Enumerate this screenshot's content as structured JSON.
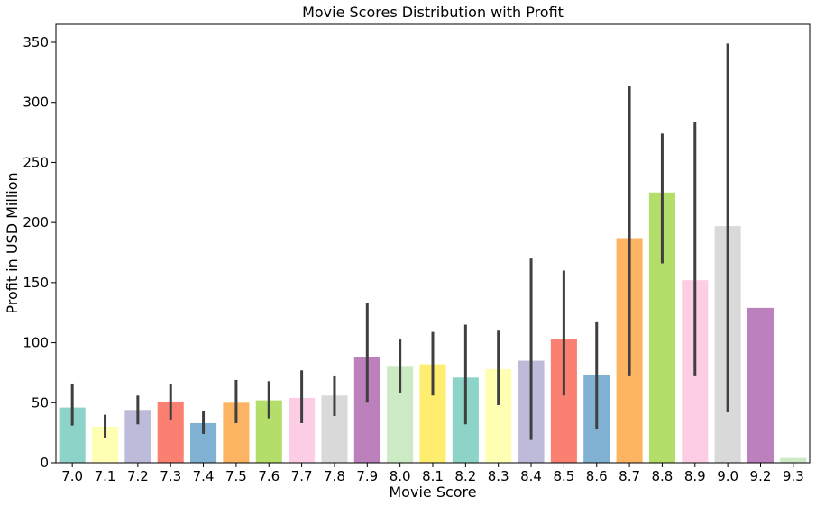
{
  "chart_data": {
    "type": "bar",
    "title": "Movie Scores Distribution with Profit",
    "xlabel": "Movie Score",
    "ylabel": "Profit in USD Million",
    "ylim": [
      0,
      365
    ],
    "yticks": [
      0,
      50,
      100,
      150,
      200,
      250,
      300,
      350
    ],
    "grid": false,
    "categories": [
      "7.0",
      "7.1",
      "7.2",
      "7.3",
      "7.4",
      "7.5",
      "7.6",
      "7.7",
      "7.8",
      "7.9",
      "8.0",
      "8.1",
      "8.2",
      "8.3",
      "8.4",
      "8.5",
      "8.6",
      "8.7",
      "8.8",
      "8.9",
      "9.0",
      "9.2",
      "9.3"
    ],
    "values": [
      46,
      30,
      44,
      51,
      33,
      50,
      52,
      54,
      56,
      88,
      80,
      82,
      71,
      78,
      85,
      103,
      73,
      187,
      225,
      152,
      197,
      129,
      4
    ],
    "error_bars": [
      [
        31,
        66
      ],
      [
        21,
        40
      ],
      [
        32,
        56
      ],
      [
        36,
        66
      ],
      [
        24,
        43
      ],
      [
        33,
        69
      ],
      [
        37,
        68
      ],
      [
        33,
        77
      ],
      [
        39,
        72
      ],
      [
        50,
        133
      ],
      [
        58,
        103
      ],
      [
        56,
        109
      ],
      [
        32,
        115
      ],
      [
        48,
        110
      ],
      [
        19,
        170
      ],
      [
        56,
        160
      ],
      [
        28,
        117
      ],
      [
        72,
        314
      ],
      [
        166,
        274
      ],
      [
        72,
        284
      ],
      [
        42,
        349
      ],
      null,
      null
    ],
    "colors": [
      "#8dd3c7",
      "#ffffb3",
      "#bebada",
      "#fb8072",
      "#80b1d3",
      "#fdb462",
      "#b3de69",
      "#fccde5",
      "#d9d9d9",
      "#bc80bd",
      "#ccebc5",
      "#ffed6f",
      "#8dd3c7",
      "#ffffb3",
      "#bebada",
      "#fb8072",
      "#80b1d3",
      "#fdb462",
      "#b3de69",
      "#fccde5",
      "#d9d9d9",
      "#bc80bd",
      "#ccebc5"
    ],
    "errorbar_color": "#3f3f3f"
  }
}
